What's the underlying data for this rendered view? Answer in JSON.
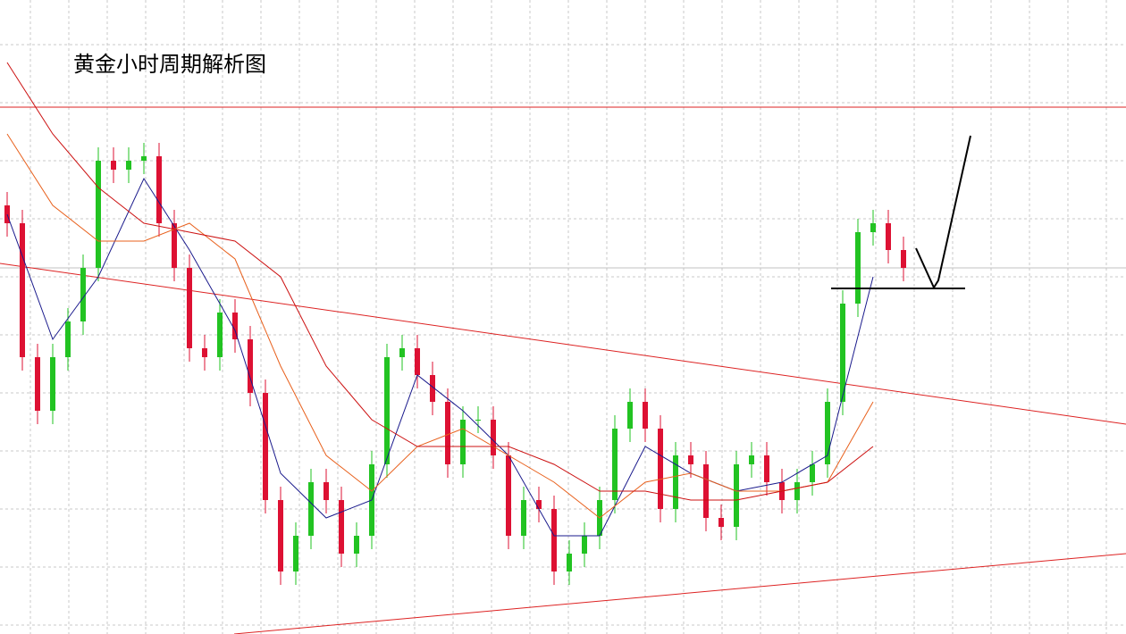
{
  "chart_data": {
    "type": "candlestick",
    "title": "黄金小时周期解析图",
    "ylim": [
      0,
      710
    ],
    "grid": true,
    "up_color": "#22c322",
    "down_color": "#dd1133",
    "open": [
      480,
      460,
      310,
      250,
      310,
      350,
      410,
      530,
      520,
      530,
      535,
      460,
      410,
      320,
      310,
      360,
      330,
      270,
      150,
      70,
      110,
      170,
      150,
      90,
      110,
      190,
      310,
      320,
      290,
      260,
      190,
      240,
      240,
      200,
      110,
      150,
      140,
      70,
      90,
      110,
      150,
      230,
      260,
      230,
      140,
      200,
      190,
      130,
      120,
      190,
      200,
      170,
      150,
      170,
      190,
      260,
      370,
      450,
      460,
      430
    ],
    "high": [
      495,
      475,
      325,
      325,
      365,
      425,
      545,
      545,
      545,
      550,
      550,
      475,
      425,
      335,
      375,
      375,
      345,
      285,
      165,
      125,
      185,
      185,
      165,
      125,
      205,
      325,
      335,
      335,
      305,
      275,
      255,
      255,
      255,
      215,
      165,
      165,
      155,
      105,
      125,
      165,
      245,
      275,
      275,
      245,
      215,
      215,
      205,
      145,
      205,
      215,
      215,
      185,
      185,
      205,
      275,
      385,
      465,
      475,
      475,
      445
    ],
    "low": [
      445,
      295,
      235,
      235,
      295,
      335,
      395,
      505,
      505,
      515,
      445,
      395,
      305,
      295,
      295,
      315,
      255,
      135,
      55,
      55,
      95,
      135,
      75,
      75,
      95,
      175,
      295,
      275,
      245,
      175,
      175,
      225,
      185,
      95,
      95,
      125,
      55,
      55,
      75,
      95,
      135,
      215,
      215,
      125,
      125,
      175,
      115,
      105,
      105,
      175,
      155,
      135,
      135,
      155,
      175,
      245,
      355,
      435,
      415,
      395
    ],
    "close": [
      460,
      310,
      250,
      310,
      350,
      410,
      530,
      520,
      530,
      535,
      460,
      410,
      320,
      310,
      360,
      330,
      270,
      150,
      70,
      110,
      170,
      150,
      90,
      110,
      190,
      310,
      320,
      290,
      260,
      190,
      240,
      240,
      200,
      110,
      150,
      140,
      70,
      90,
      110,
      150,
      230,
      260,
      230,
      140,
      200,
      190,
      130,
      120,
      190,
      200,
      170,
      150,
      170,
      190,
      260,
      370,
      450,
      460,
      430,
      410
    ],
    "series": [
      {
        "color": "#1a1a8c",
        "x": [
          0,
          3,
          6,
          9,
          12,
          15,
          18,
          21,
          24,
          27,
          30,
          33,
          36,
          39,
          42,
          45,
          48,
          51,
          54,
          57
        ],
        "values": [
          470,
          330,
          400,
          510,
          430,
          340,
          180,
          130,
          150,
          290,
          250,
          200,
          110,
          110,
          210,
          180,
          160,
          170,
          200,
          400
        ]
      },
      {
        "color": "#e8601c",
        "x": [
          0,
          3,
          6,
          9,
          12,
          15,
          18,
          21,
          24,
          27,
          30,
          33,
          36,
          39,
          42,
          45,
          48,
          51,
          54,
          57
        ],
        "values": [
          560,
          480,
          440,
          440,
          460,
          420,
          300,
          200,
          160,
          210,
          230,
          200,
          170,
          130,
          170,
          180,
          160,
          160,
          170,
          260
        ]
      },
      {
        "color": "#cc1111",
        "x": [
          0,
          3,
          6,
          9,
          12,
          15,
          18,
          21,
          24,
          27,
          30,
          33,
          36,
          39,
          42,
          45,
          48,
          51,
          54,
          57
        ],
        "values": [
          640,
          560,
          500,
          460,
          450,
          440,
          400,
          300,
          240,
          210,
          210,
          210,
          190,
          160,
          160,
          150,
          150,
          160,
          170,
          210
        ]
      }
    ]
  }
}
